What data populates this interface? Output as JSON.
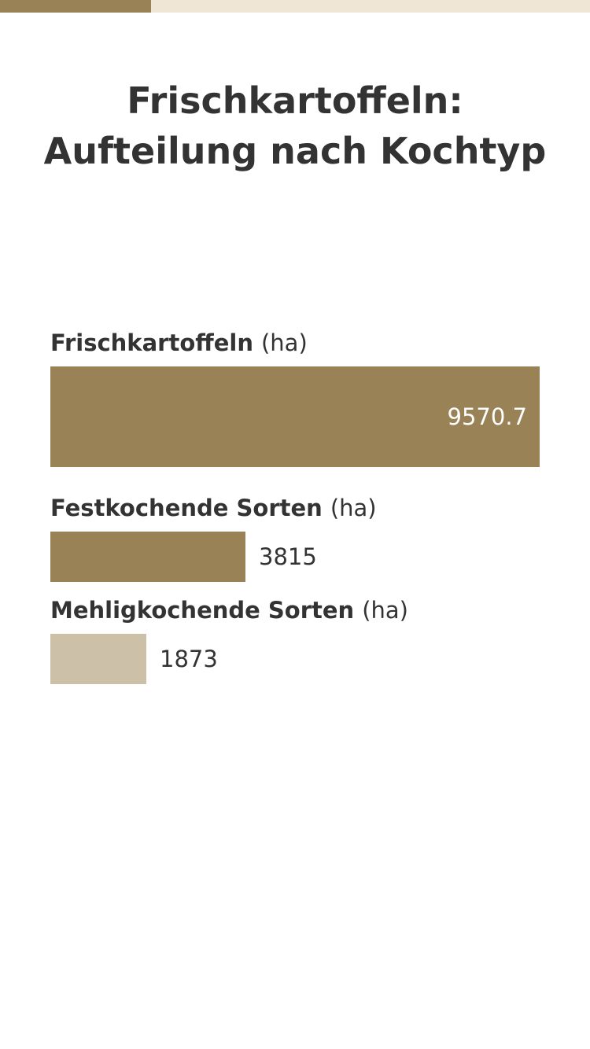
{
  "progress": {
    "fraction": 0.256,
    "fill_color": "#9a8257",
    "track_color": "#efe6d6"
  },
  "title": {
    "line1": "Frischkartoffeln:",
    "line2": "Aufteilung nach Kochtyp"
  },
  "chart_data": {
    "type": "bar",
    "orientation": "horizontal",
    "title": "Frischkartoffeln: Aufteilung nach Kochtyp",
    "categories": [
      "Frischkartoffeln",
      "Festkochende Sorten",
      "Mehligkochende Sorten"
    ],
    "unit": "(ha)",
    "values": [
      9570.7,
      3815,
      1873
    ],
    "value_labels": [
      "9570.7",
      "3815",
      "1873"
    ],
    "colors": [
      "#9a8257",
      "#9a8257",
      "#cdc0a8"
    ],
    "xlim": [
      0,
      9570.7
    ],
    "grid": false,
    "legend": "none"
  }
}
